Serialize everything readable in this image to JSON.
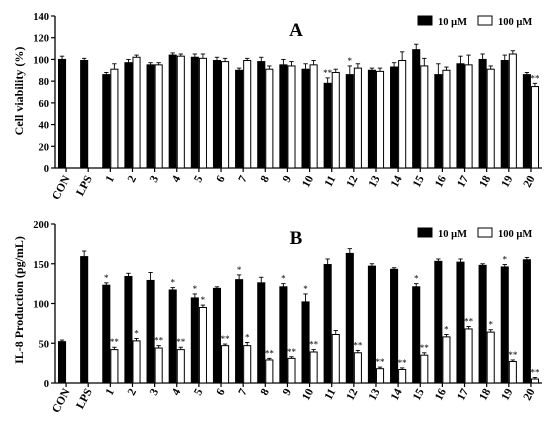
{
  "chart_data": [
    {
      "type": "bar",
      "panel_label": "A",
      "ylabel": "Cell viability (%)",
      "ylim": [
        0,
        140
      ],
      "yticks": [
        "0",
        "20",
        "40",
        "60",
        "80",
        "100",
        "120",
        "140"
      ],
      "categories": [
        "CON",
        "LPS",
        "1",
        "2",
        "3",
        "4",
        "5",
        "6",
        "7",
        "8",
        "9",
        "10",
        "11",
        "12",
        "13",
        "14",
        "15",
        "16",
        "17",
        "18",
        "19",
        "20"
      ],
      "legend_position": "top-right",
      "series": [
        {
          "name": "10 μM",
          "color": "#000000",
          "values": [
            100,
            99,
            86,
            97,
            95,
            104,
            102,
            99,
            90,
            98,
            95,
            91,
            78,
            86,
            90,
            93,
            109,
            86,
            96,
            100,
            99,
            86
          ],
          "errors": [
            3,
            2,
            2,
            3,
            2,
            2,
            3,
            3,
            2,
            4,
            5,
            5,
            5,
            8,
            2,
            4,
            5,
            10,
            7,
            5,
            5,
            2
          ],
          "marks": [
            "",
            "",
            "",
            "",
            "",
            "",
            "",
            "",
            "",
            "",
            "",
            "",
            "**",
            "*",
            "",
            "",
            "",
            "",
            "",
            "",
            "",
            ""
          ]
        },
        {
          "name": "100 μM",
          "color": "#ffffff",
          "values": [
            null,
            null,
            91,
            102,
            95,
            103,
            101,
            98,
            99,
            91,
            94,
            95,
            88,
            92,
            89,
            99,
            94,
            90,
            95,
            91,
            105,
            75
          ],
          "errors": [
            null,
            null,
            5,
            2,
            2,
            2,
            4,
            3,
            2,
            3,
            4,
            4,
            3,
            4,
            3,
            8,
            7,
            3,
            9,
            3,
            3,
            3
          ],
          "marks": [
            "",
            "",
            "",
            "",
            "",
            "",
            "",
            "",
            "",
            "",
            "",
            "",
            "",
            "",
            "",
            "",
            "",
            "",
            "",
            "",
            "",
            "**"
          ]
        }
      ]
    },
    {
      "type": "bar",
      "panel_label": "B",
      "ylabel": "IL-8 Production (pg/mL)",
      "ylim": [
        0,
        200
      ],
      "yticks": [
        "0",
        "50",
        "100",
        "150",
        "200"
      ],
      "categories": [
        "CON",
        "LPS",
        "1",
        "2",
        "3",
        "4",
        "5",
        "6",
        "7",
        "8",
        "9",
        "10",
        "11",
        "12",
        "13",
        "14",
        "15",
        "16",
        "17",
        "18",
        "19",
        "20"
      ],
      "legend_position": "top-right",
      "series": [
        {
          "name": "10 μM",
          "color": "#000000",
          "values": [
            52,
            159,
            123,
            134,
            129,
            117,
            107,
            119,
            130,
            126,
            121,
            102,
            149,
            163,
            147,
            143,
            121,
            153,
            152,
            148,
            146,
            155
          ],
          "errors": [
            2,
            7,
            3,
            4,
            10,
            3,
            5,
            2,
            6,
            7,
            4,
            10,
            7,
            6,
            3,
            2,
            4,
            3,
            4,
            2,
            3,
            3
          ],
          "marks": [
            "",
            "",
            "*",
            "",
            "",
            "*",
            "*",
            "",
            "*",
            "",
            "*",
            "*",
            "",
            "",
            "",
            "",
            "*",
            "",
            "",
            "",
            "*",
            ""
          ]
        },
        {
          "name": "100 μM",
          "color": "#ffffff",
          "values": [
            null,
            null,
            42,
            53,
            44,
            42,
            95,
            47,
            47,
            29,
            31,
            39,
            61,
            38,
            18,
            17,
            35,
            58,
            68,
            64,
            27,
            5
          ],
          "errors": [
            null,
            null,
            3,
            3,
            3,
            3,
            3,
            2,
            4,
            2,
            2,
            3,
            5,
            3,
            2,
            2,
            3,
            3,
            3,
            3,
            2,
            2
          ],
          "marks": [
            "",
            "",
            "**",
            "*",
            "**",
            "**",
            "*",
            "**",
            "*",
            "**",
            "**",
            "**",
            "",
            "**",
            "**",
            "**",
            "**",
            "*",
            "**",
            "*",
            "**",
            "**"
          ]
        }
      ]
    }
  ]
}
